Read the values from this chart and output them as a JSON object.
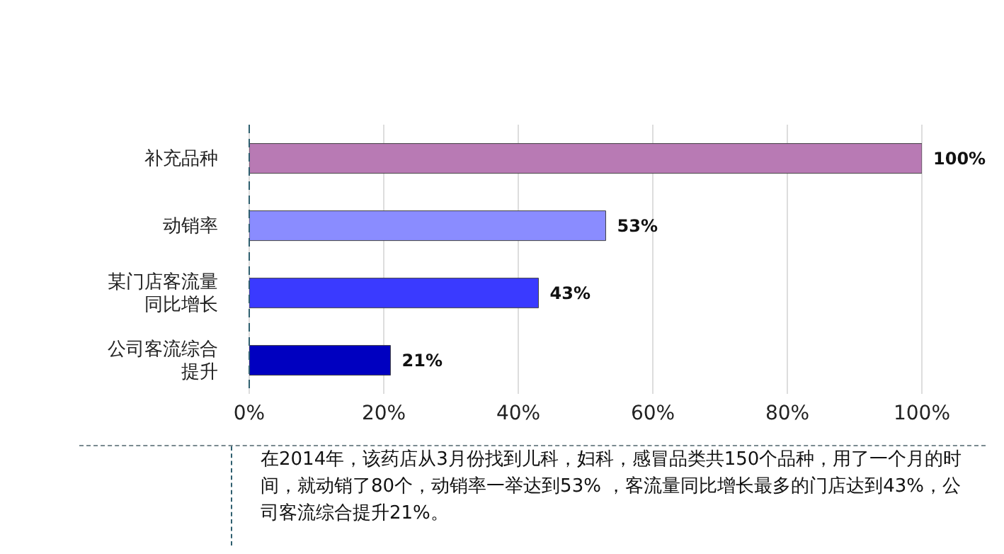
{
  "chart_data": {
    "type": "bar",
    "orientation": "horizontal",
    "categories": [
      "补充品种",
      "动销率",
      "某门店客流量同比增长",
      "公司客流综合提升"
    ],
    "values": [
      100,
      53,
      43,
      21
    ],
    "colors": [
      "#b87ab4",
      "#8a8cff",
      "#3a3aff",
      "#0000c0"
    ],
    "xlim": [
      0,
      100
    ],
    "xticks": [
      {
        "value": 0,
        "label": "0%"
      },
      {
        "value": 20,
        "label": "20%"
      },
      {
        "value": 40,
        "label": "40%"
      },
      {
        "value": 60,
        "label": "60%"
      },
      {
        "value": 80,
        "label": "80%"
      },
      {
        "value": 100,
        "label": "100%"
      }
    ],
    "value_labels": [
      "100%",
      "53%",
      "43%",
      "21%"
    ],
    "grid": "x",
    "legend": false,
    "annotations": [
      "在2014年，该药店从3月份找到儿科，妇科，感冒品类共150个品种，用了一个月的时间，就动销了80个，动销率一举达到53% ，客流量同比增长最多的门店达到43%，公司客流综合提升21%。"
    ]
  }
}
